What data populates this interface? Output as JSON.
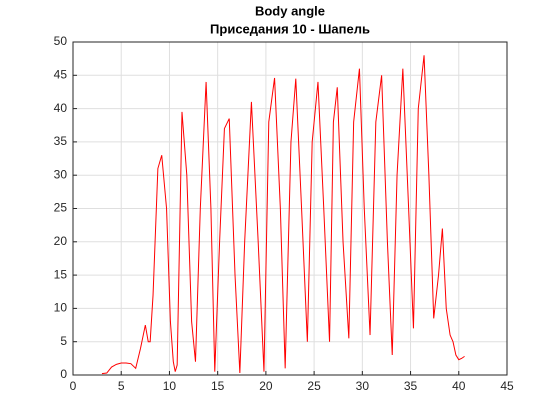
{
  "chart_data": {
    "type": "line",
    "title": [
      "Body angle",
      "Приседания 10 - Шапель"
    ],
    "x": [
      3,
      3.5,
      4,
      4.5,
      5,
      5.5,
      6,
      6.5,
      7,
      7.5,
      7.8,
      8,
      8.3,
      8.8,
      9.2,
      9.7,
      10.1,
      10.4,
      10.6,
      10.8,
      11.3,
      11.8,
      12.3,
      12.7,
      13.2,
      13.8,
      14.3,
      14.7,
      15.2,
      15.7,
      16.2,
      16.8,
      17.3,
      17.8,
      18.5,
      19.2,
      19.8,
      20.3,
      20.9,
      21.5,
      22,
      22.6,
      23.1,
      23.7,
      24.3,
      24.8,
      25.4,
      26,
      26.6,
      27,
      27.4,
      28,
      28.6,
      29.1,
      29.7,
      30.2,
      30.8,
      31.4,
      32,
      32.6,
      33.1,
      33.6,
      34.2,
      34.8,
      35.3,
      35.8,
      36.4,
      36.9,
      37.4,
      37.9,
      38.3,
      38.7,
      39.1,
      39.4,
      39.7,
      40,
      40.3,
      40.6
    ],
    "values": [
      0.2,
      0.3,
      1.2,
      1.6,
      1.8,
      1.8,
      1.7,
      1,
      4,
      7.5,
      5,
      5,
      12,
      31,
      33,
      25,
      8,
      2,
      0.5,
      1.5,
      39.5,
      30,
      8,
      2,
      25,
      44,
      25,
      0.5,
      20,
      37,
      38.5,
      15,
      0.3,
      20,
      41,
      20,
      0.5,
      38,
      44.6,
      25,
      1,
      35,
      44.5,
      25,
      5,
      35,
      44,
      25,
      5,
      38,
      43.2,
      20,
      5.5,
      38,
      46,
      25,
      6,
      38,
      45,
      20,
      3,
      30,
      46,
      25,
      7,
      40,
      48,
      30,
      8.5,
      15,
      22,
      10,
      6,
      5,
      3,
      2.3,
      2.5,
      2.8
    ],
    "color": "#ff0000",
    "xlim": [
      0,
      45
    ],
    "xticks": [
      0,
      5,
      10,
      15,
      20,
      25,
      30,
      35,
      40,
      45
    ],
    "ylim": [
      0,
      50
    ],
    "yticks": [
      0,
      5,
      10,
      15,
      20,
      25,
      30,
      35,
      40,
      45,
      50
    ],
    "grid": true
  }
}
